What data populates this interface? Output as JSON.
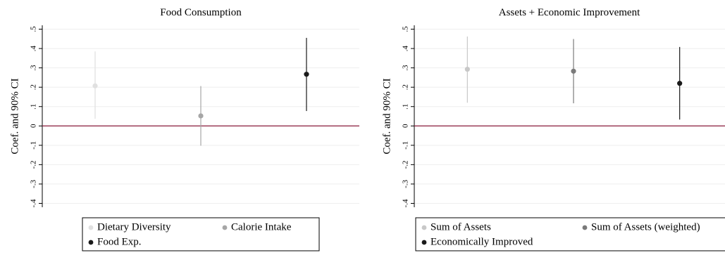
{
  "chart_data": [
    {
      "type": "scatter",
      "title": "Food Consumption",
      "xlabel": "",
      "ylabel": "Coef. and 90% CI",
      "ylim": [
        -0.42,
        0.52
      ],
      "yticks": [
        ".5",
        ".4",
        ".3",
        ".2",
        ".1",
        "0",
        "-.1",
        "-.2",
        "-.3",
        "-.4"
      ],
      "ytick_values": [
        0.5,
        0.4,
        0.3,
        0.2,
        0.1,
        0,
        -0.1,
        -0.2,
        -0.3,
        -0.4
      ],
      "grid": true,
      "reference_line": 0,
      "reference_color": "#8b1a3a",
      "legend_position": "bottom",
      "series": [
        {
          "name": "Dietary Diversity",
          "coef": 0.207,
          "ci_low": 0.037,
          "ci_high": 0.385,
          "color": "#e0e0e0"
        },
        {
          "name": "Calorie Intake",
          "coef": 0.052,
          "ci_low": -0.102,
          "ci_high": 0.206,
          "color": "#a6a6a6"
        },
        {
          "name": "Food Exp.",
          "coef": 0.267,
          "ci_low": 0.077,
          "ci_high": 0.455,
          "color": "#1a1a1a"
        }
      ],
      "legend_rows": [
        [
          0,
          1
        ],
        [
          2
        ]
      ]
    },
    {
      "type": "scatter",
      "title": "Assets + Economic Improvement",
      "xlabel": "",
      "ylabel": "Coef. and 90% CI",
      "ylim": [
        -0.42,
        0.52
      ],
      "yticks": [
        ".5",
        ".4",
        ".3",
        ".2",
        ".1",
        "0",
        "-.1",
        "-.2",
        "-.3",
        "-.4"
      ],
      "ytick_values": [
        0.5,
        0.4,
        0.3,
        0.2,
        0.1,
        0,
        -0.1,
        -0.2,
        -0.3,
        -0.4
      ],
      "grid": true,
      "reference_line": 0,
      "reference_color": "#8b1a3a",
      "legend_position": "bottom",
      "series": [
        {
          "name": "Sum of Assets",
          "coef": 0.293,
          "ci_low": 0.12,
          "ci_high": 0.462,
          "color": "#c8c8c8"
        },
        {
          "name": "Sum of Assets (weighted)",
          "coef": 0.283,
          "ci_low": 0.117,
          "ci_high": 0.449,
          "color": "#7a7a7a"
        },
        {
          "name": "Economically Improved",
          "coef": 0.22,
          "ci_low": 0.033,
          "ci_high": 0.408,
          "color": "#1a1a1a"
        }
      ],
      "legend_rows": [
        [
          0,
          1
        ],
        [
          2
        ]
      ]
    }
  ]
}
